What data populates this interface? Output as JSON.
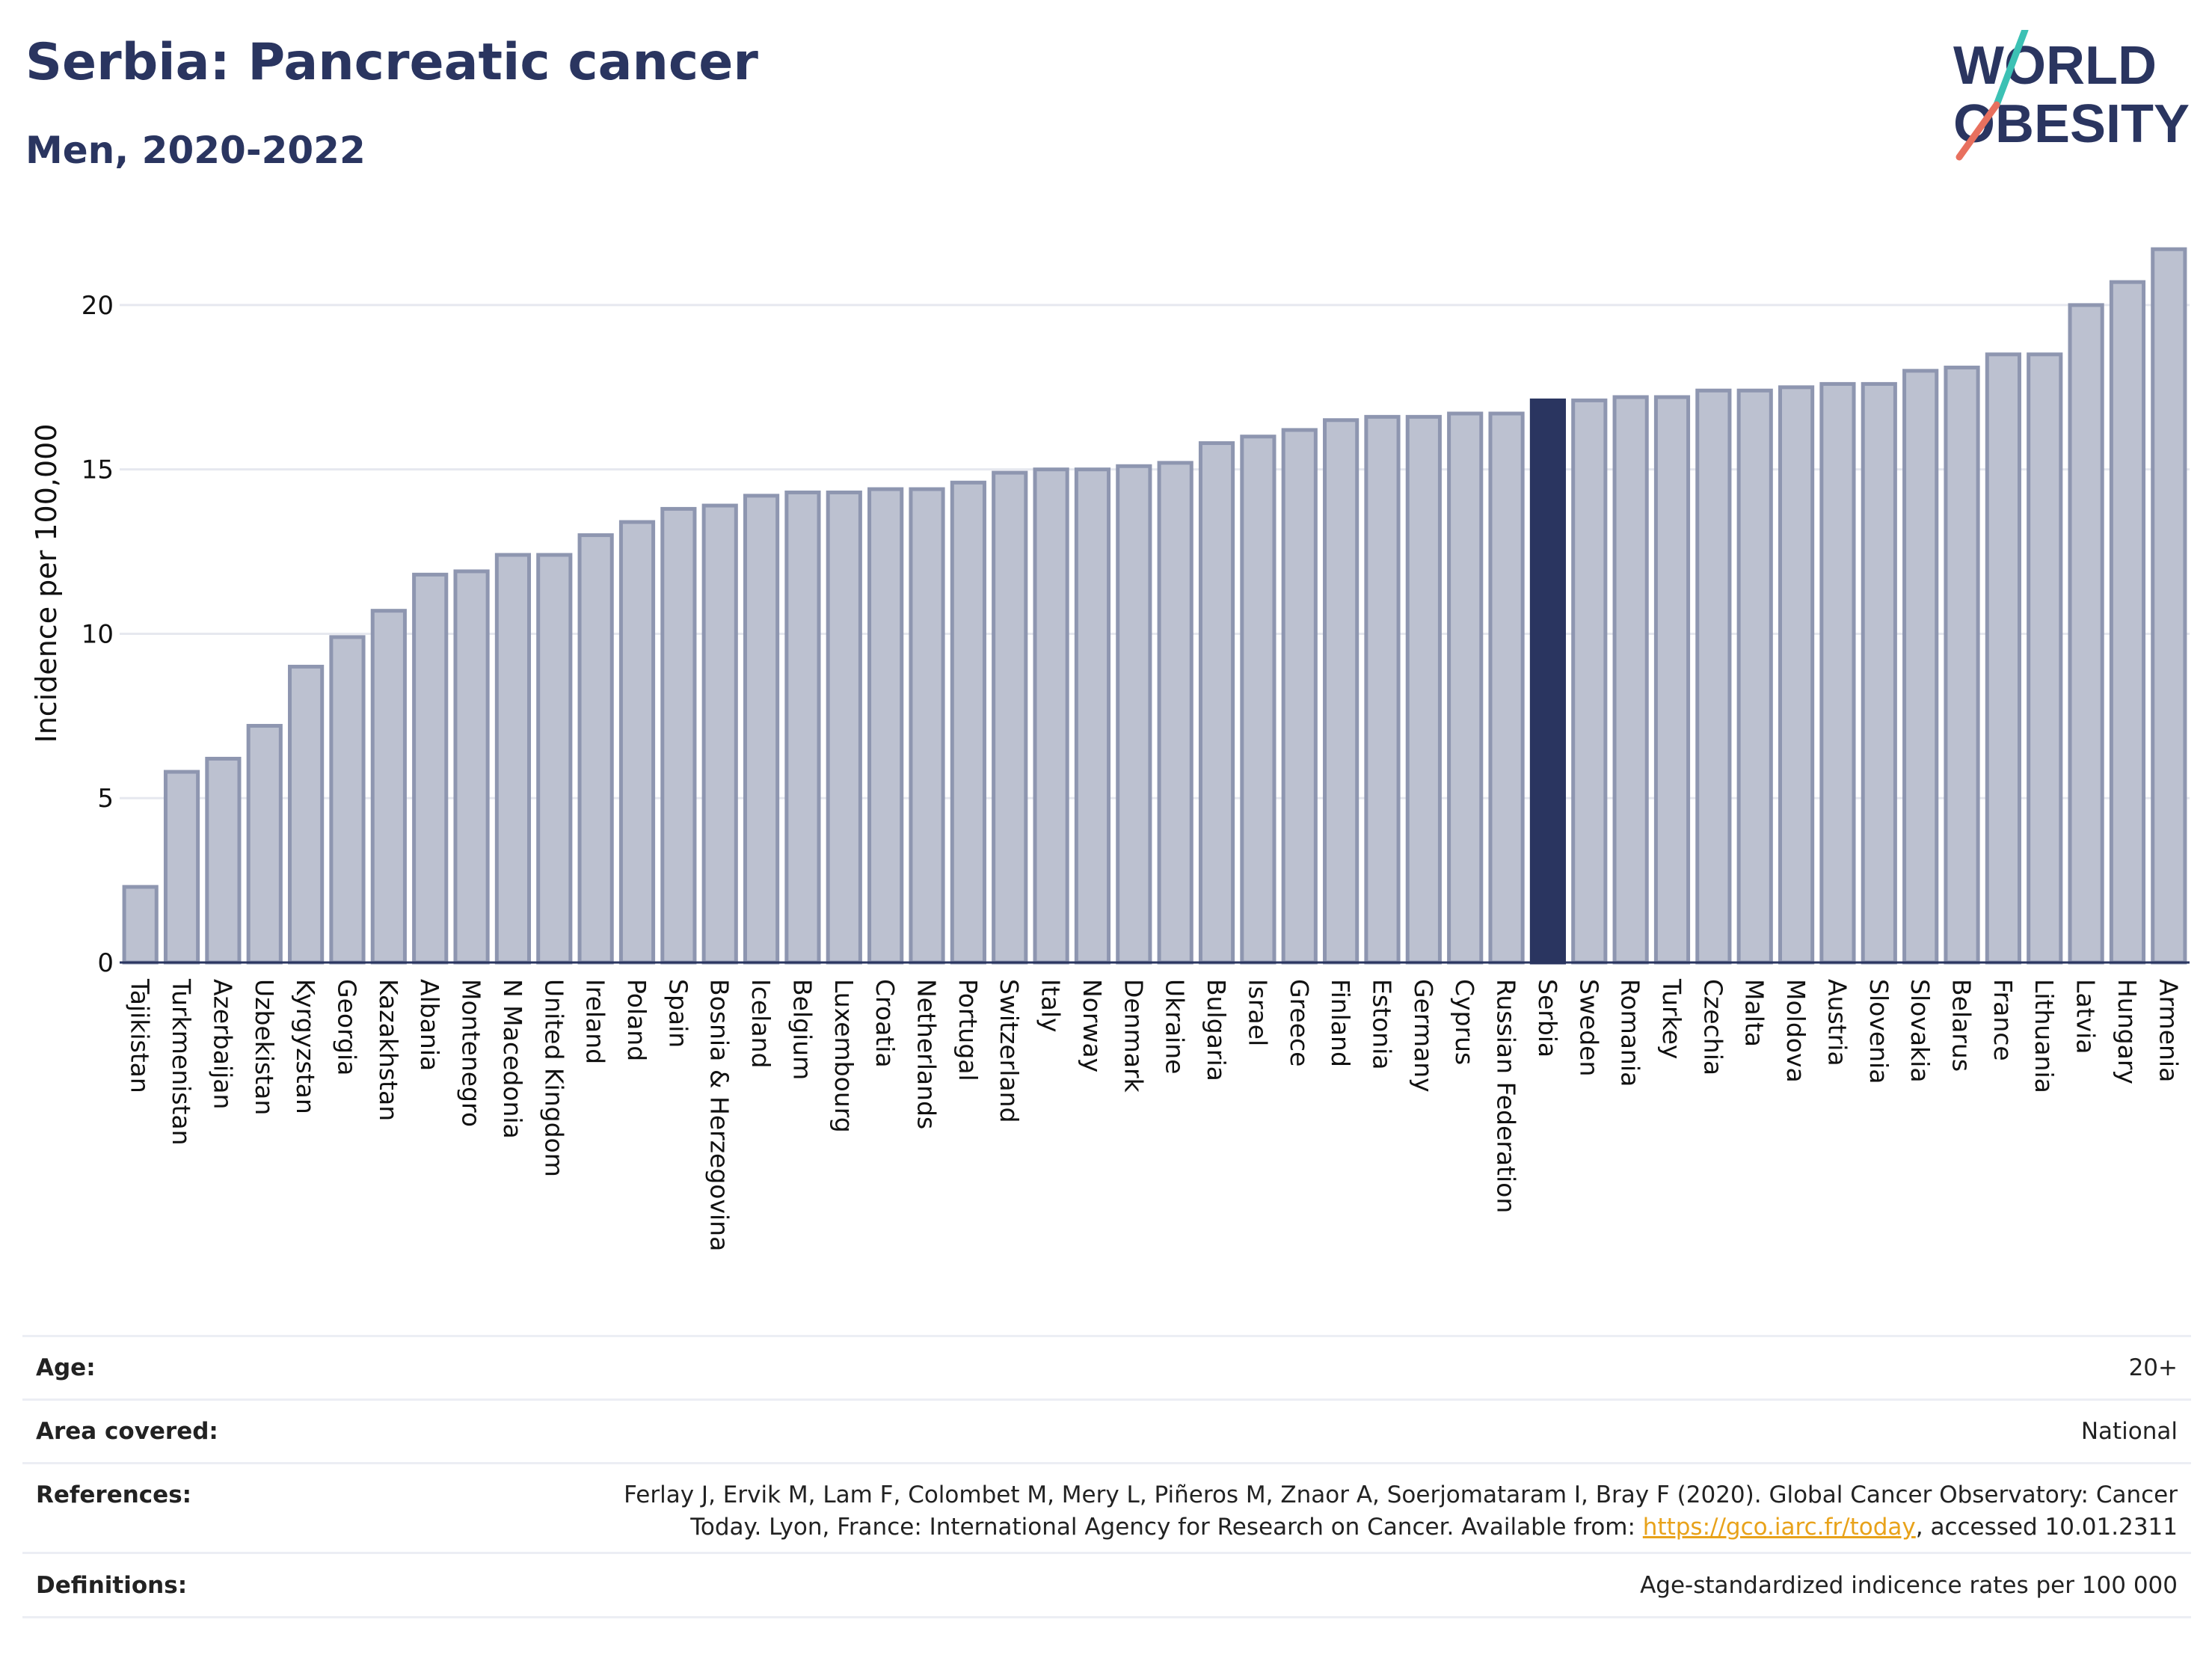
{
  "title": "Serbia: Pancreatic cancer",
  "subtitle": "Men, 2020-2022",
  "logo": {
    "line1": "WORLD",
    "line2": "OBESITY"
  },
  "colors": {
    "bar": "#bcc1d0",
    "bar_border": "#8e96b0",
    "highlight": "#2a3560",
    "grid": "#e6e8ef",
    "text": "#2a3560"
  },
  "chart_data": {
    "type": "bar",
    "ylabel": "Incidence per 100,000",
    "ylim": [
      0,
      22
    ],
    "yticks": [
      0,
      5,
      10,
      15,
      20
    ],
    "highlight": "Serbia",
    "categories": [
      "Tajikistan",
      "Turkmenistan",
      "Azerbaijan",
      "Uzbekistan",
      "Kyrgyzstan",
      "Georgia",
      "Kazakhstan",
      "Albania",
      "Montenegro",
      "N Macedonia",
      "United Kingdom",
      "Ireland",
      "Poland",
      "Spain",
      "Bosnia & Herzegovina",
      "Iceland",
      "Belgium",
      "Luxembourg",
      "Croatia",
      "Netherlands",
      "Portugal",
      "Switzerland",
      "Italy",
      "Norway",
      "Denmark",
      "Ukraine",
      "Bulgaria",
      "Israel",
      "Greece",
      "Finland",
      "Estonia",
      "Germany",
      "Cyprus",
      "Russian Federation",
      "Serbia",
      "Sweden",
      "Romania",
      "Turkey",
      "Czechia",
      "Malta",
      "Moldova",
      "Austria",
      "Slovenia",
      "Slovakia",
      "Belarus",
      "France",
      "Lithuania",
      "Latvia",
      "Hungary",
      "Armenia"
    ],
    "values": [
      2.3,
      5.8,
      6.2,
      7.2,
      9.0,
      9.9,
      10.7,
      11.8,
      11.9,
      12.4,
      12.4,
      13.0,
      13.4,
      13.8,
      13.9,
      14.2,
      14.3,
      14.3,
      14.4,
      14.4,
      14.6,
      14.9,
      15.0,
      15.0,
      15.1,
      15.2,
      15.8,
      16.0,
      16.2,
      16.5,
      16.6,
      16.6,
      16.7,
      16.7,
      17.1,
      17.1,
      17.2,
      17.2,
      17.4,
      17.4,
      17.5,
      17.6,
      17.6,
      18.0,
      18.1,
      18.5,
      18.5,
      20.0,
      20.7,
      21.7
    ]
  },
  "footer": {
    "age_label": "Age:",
    "age_value": "20+",
    "area_label": "Area covered:",
    "area_value": "National",
    "ref_label": "References:",
    "ref_line1": "Ferlay J, Ervik M, Lam F, Colombet M, Mery L, Piñeros M, Znaor A, Soerjomataram I, Bray F (2020). Global Cancer Observatory: Cancer",
    "ref_line2_pre": "Today. Lyon, France: International Agency for Research on Cancer. Available from: ",
    "ref_link": "https://gco.iarc.fr/today",
    "ref_line2_post": ", accessed 10.01.2311",
    "def_label": "Definitions:",
    "def_value": "Age-standardized indicence rates per 100 000"
  }
}
